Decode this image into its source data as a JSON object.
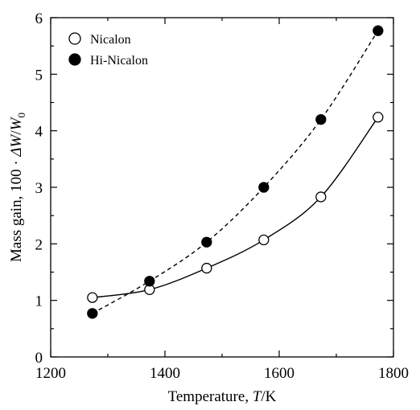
{
  "chart_data": {
    "type": "line",
    "xlabel": "Temperature, T/K",
    "ylabel": "Mass gain, 100 · ΔW/W0",
    "xlim": [
      1200,
      1800
    ],
    "ylim": [
      0,
      6
    ],
    "x_ticks": [
      1200,
      1400,
      1600,
      1800
    ],
    "y_ticks": [
      0,
      1,
      2,
      3,
      4,
      5,
      6
    ],
    "grid": false,
    "legend_position": "top-left",
    "series": [
      {
        "name": "Nicalon",
        "marker": "open-circle",
        "line_style": "solid",
        "x": [
          1273,
          1373,
          1473,
          1573,
          1673,
          1773
        ],
        "y": [
          1.05,
          1.19,
          1.57,
          2.07,
          2.83,
          4.24
        ]
      },
      {
        "name": "Hi-Nicalon",
        "marker": "filled-circle",
        "line_style": "dashed",
        "x": [
          1273,
          1373,
          1473,
          1573,
          1673,
          1773
        ],
        "y": [
          0.77,
          1.34,
          2.03,
          3.0,
          4.2,
          5.77
        ]
      }
    ]
  }
}
